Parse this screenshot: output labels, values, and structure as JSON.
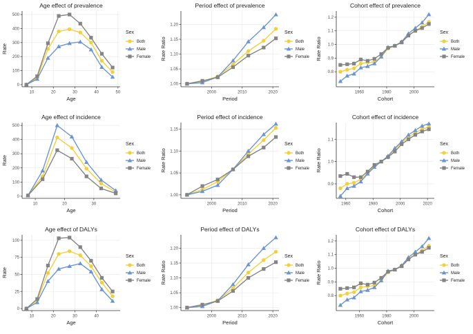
{
  "colors": {
    "both": "#F2D03B",
    "male": "#6B95D1",
    "female": "#848484",
    "grid": "#E6E6E6",
    "axis": "#333333",
    "tick": "#4d4d4d"
  },
  "legend": {
    "title": "Sex",
    "labels": [
      "Both",
      "Male",
      "Female"
    ]
  },
  "chart_data": [
    {
      "type": "line",
      "title": "Age effect of prevalence",
      "xlabel": "Age",
      "ylabel": "Rate",
      "xlim": [
        5.5,
        51
      ],
      "ylim": [
        -15,
        525
      ],
      "xticks": [
        10,
        20,
        30,
        40,
        50
      ],
      "yticks": [
        0,
        100,
        200,
        300,
        400,
        500
      ],
      "x": [
        7.5,
        12.5,
        17.5,
        22.5,
        27.5,
        32.5,
        37.5,
        42.5,
        47.5
      ],
      "series": [
        {
          "name": "Both",
          "values": [
            0,
            50,
            255,
            380,
            395,
            372,
            300,
            170,
            90
          ]
        },
        {
          "name": "Male",
          "values": [
            0,
            40,
            190,
            272,
            295,
            305,
            250,
            125,
            55
          ]
        },
        {
          "name": "Female",
          "values": [
            0,
            60,
            295,
            490,
            500,
            435,
            335,
            220,
            122
          ]
        }
      ]
    },
    {
      "type": "line",
      "title": "Period effect of prevalence",
      "xlabel": "Period",
      "ylabel": "Rate Ratio",
      "xlim": [
        1990,
        2022
      ],
      "ylim": [
        0.99,
        1.245
      ],
      "xticks": [
        2000,
        2010,
        2020
      ],
      "yticks": [
        1.0,
        1.05,
        1.1,
        1.15,
        1.2
      ],
      "yformat": 2,
      "x": [
        1992,
        1997,
        2002,
        2007,
        2012,
        2017,
        2021
      ],
      "series": [
        {
          "name": "Both",
          "values": [
            1.0,
            1.008,
            1.025,
            1.065,
            1.11,
            1.145,
            1.185
          ]
        },
        {
          "name": "Male",
          "values": [
            1.0,
            1.004,
            1.023,
            1.078,
            1.142,
            1.19,
            1.233
          ]
        },
        {
          "name": "Female",
          "values": [
            1.0,
            1.01,
            1.022,
            1.056,
            1.095,
            1.122,
            1.153
          ]
        }
      ]
    },
    {
      "type": "line",
      "title": "Cohort effect of prevalence",
      "xlabel": "Cohort",
      "ylabel": "Rate Ratio",
      "xlim": [
        1943,
        2015
      ],
      "ylim": [
        0.69,
        1.245
      ],
      "xticks": [
        1960,
        1980,
        2000
      ],
      "yticks": [
        0.8,
        0.9,
        1.0,
        1.1,
        1.2
      ],
      "yformat": 1,
      "x": [
        1946,
        1951,
        1956,
        1961,
        1966,
        1971,
        1976,
        1981,
        1986,
        1991,
        1996,
        2001,
        2006,
        2011
      ],
      "series": [
        {
          "name": "Both",
          "values": [
            0.8,
            0.815,
            0.825,
            0.86,
            0.868,
            0.872,
            0.91,
            0.97,
            0.99,
            1.02,
            1.07,
            1.1,
            1.13,
            1.165
          ]
        },
        {
          "name": "Male",
          "values": [
            0.73,
            0.77,
            0.785,
            0.83,
            0.84,
            0.86,
            0.91,
            0.98,
            0.99,
            1.02,
            1.08,
            1.12,
            1.16,
            1.22
          ]
        },
        {
          "name": "Female",
          "values": [
            0.85,
            0.855,
            0.86,
            0.89,
            0.88,
            0.895,
            0.93,
            0.975,
            0.99,
            1.015,
            1.065,
            1.1,
            1.12,
            1.15
          ]
        }
      ]
    },
    {
      "type": "line",
      "title": "Age effect of incidence",
      "xlabel": "Age",
      "ylabel": "Rate",
      "xlim": [
        5.5,
        39
      ],
      "ylim": [
        -15,
        520
      ],
      "xticks": [
        10,
        20,
        30
      ],
      "yticks": [
        0,
        100,
        200,
        300,
        400,
        500
      ],
      "x": [
        7.5,
        12.5,
        17.5,
        22.5,
        27.5,
        32.5,
        37.5
      ],
      "series": [
        {
          "name": "Both",
          "values": [
            5,
            140,
            415,
            340,
            195,
            90,
            30
          ]
        },
        {
          "name": "Male",
          "values": [
            5,
            180,
            500,
            420,
            240,
            115,
            40
          ]
        },
        {
          "name": "Female",
          "values": [
            5,
            120,
            325,
            265,
            140,
            55,
            20
          ]
        }
      ]
    },
    {
      "type": "line",
      "title": "Period effect of incidence",
      "xlabel": "Period",
      "ylabel": "Rate Ratio",
      "xlim": [
        1990,
        2022
      ],
      "ylim": [
        0.992,
        1.165
      ],
      "xticks": [
        2000,
        2010,
        2020
      ],
      "yticks": [
        1.0,
        1.05,
        1.1,
        1.15
      ],
      "yformat": 2,
      "x": [
        1992,
        1997,
        2002,
        2007,
        2012,
        2017,
        2021
      ],
      "series": [
        {
          "name": "Both",
          "values": [
            1.0,
            1.012,
            1.03,
            1.058,
            1.093,
            1.125,
            1.153
          ]
        },
        {
          "name": "Male",
          "values": [
            1.0,
            1.008,
            1.022,
            1.058,
            1.1,
            1.138,
            1.162
          ]
        },
        {
          "name": "Female",
          "values": [
            1.0,
            1.02,
            1.035,
            1.058,
            1.088,
            1.108,
            1.132
          ]
        }
      ]
    },
    {
      "type": "line",
      "title": "Cohort effect of incidence",
      "xlabel": "Cohort",
      "ylabel": "Rate Ratio",
      "xlim": [
        1953,
        2025
      ],
      "ylim": [
        0.835,
        1.175
      ],
      "xticks": [
        1960,
        1980,
        2000,
        2020
      ],
      "yticks": [
        0.9,
        1.0,
        1.1
      ],
      "yformat": 1,
      "x": [
        1956,
        1961,
        1966,
        1971,
        1976,
        1981,
        1986,
        1991,
        1996,
        2001,
        2006,
        2011,
        2016,
        2021
      ],
      "series": [
        {
          "name": "Both",
          "values": [
            0.88,
            0.9,
            0.905,
            0.92,
            0.948,
            0.98,
            1.0,
            1.02,
            1.055,
            1.085,
            1.11,
            1.13,
            1.145,
            1.155
          ]
        },
        {
          "name": "Male",
          "values": [
            0.845,
            0.88,
            0.89,
            0.91,
            0.945,
            0.975,
            1.0,
            1.025,
            1.06,
            1.09,
            1.12,
            1.14,
            1.16,
            1.17
          ]
        },
        {
          "name": "Female",
          "values": [
            0.935,
            0.945,
            0.93,
            0.93,
            0.955,
            0.985,
            1.0,
            1.02,
            1.045,
            1.078,
            1.1,
            1.12,
            1.135,
            1.145
          ]
        }
      ]
    },
    {
      "type": "line",
      "title": "Age effect of DALYs",
      "xlabel": "Age",
      "ylabel": "Rate",
      "xlim": [
        5.5,
        51
      ],
      "ylim": [
        -3,
        108
      ],
      "xticks": [
        10,
        20,
        30,
        40
      ],
      "yticks": [
        0,
        25,
        50,
        75,
        100
      ],
      "x": [
        7.5,
        12.5,
        17.5,
        22.5,
        27.5,
        32.5,
        37.5,
        42.5,
        47.5
      ],
      "series": [
        {
          "name": "Both",
          "values": [
            0,
            12,
            52,
            80,
            84,
            78,
            62,
            38,
            18
          ]
        },
        {
          "name": "Male",
          "values": [
            0,
            9,
            40,
            58,
            62,
            66,
            54,
            28,
            11
          ]
        },
        {
          "name": "Female",
          "values": [
            0,
            14,
            63,
            103,
            104,
            90,
            70,
            45,
            25
          ]
        }
      ]
    },
    {
      "type": "line",
      "title": "Period effect of DALYs",
      "xlabel": "Period",
      "ylabel": "Rate Ratio",
      "xlim": [
        1990,
        2022
      ],
      "ylim": [
        0.99,
        1.245
      ],
      "xticks": [
        2000,
        2010,
        2020
      ],
      "yticks": [
        1.0,
        1.05,
        1.1,
        1.15,
        1.2
      ],
      "yformat": 2,
      "x": [
        1992,
        1997,
        2002,
        2007,
        2012,
        2017,
        2021
      ],
      "series": [
        {
          "name": "Both",
          "values": [
            1.0,
            1.008,
            1.025,
            1.065,
            1.118,
            1.16,
            1.188
          ]
        },
        {
          "name": "Male",
          "values": [
            1.0,
            1.004,
            1.023,
            1.078,
            1.145,
            1.2,
            1.236
          ]
        },
        {
          "name": "Female",
          "values": [
            1.0,
            1.01,
            1.022,
            1.056,
            1.1,
            1.13,
            1.153
          ]
        }
      ]
    },
    {
      "type": "line",
      "title": "Cohort effect of DALYs",
      "xlabel": "Cohort",
      "ylabel": "Rate Ratio",
      "xlim": [
        1943,
        2015
      ],
      "ylim": [
        0.69,
        1.245
      ],
      "xticks": [
        1960,
        1980,
        2000
      ],
      "yticks": [
        0.8,
        0.9,
        1.0,
        1.1,
        1.2
      ],
      "yformat": 1,
      "x": [
        1946,
        1951,
        1956,
        1961,
        1966,
        1971,
        1976,
        1981,
        1986,
        1991,
        1996,
        2001,
        2006,
        2011
      ],
      "series": [
        {
          "name": "Both",
          "values": [
            0.8,
            0.815,
            0.825,
            0.86,
            0.868,
            0.872,
            0.91,
            0.97,
            0.99,
            1.02,
            1.07,
            1.1,
            1.13,
            1.165
          ]
        },
        {
          "name": "Male",
          "values": [
            0.73,
            0.77,
            0.785,
            0.83,
            0.84,
            0.86,
            0.91,
            0.98,
            0.99,
            1.02,
            1.08,
            1.12,
            1.16,
            1.22
          ]
        },
        {
          "name": "Female",
          "values": [
            0.85,
            0.855,
            0.86,
            0.89,
            0.88,
            0.895,
            0.93,
            0.975,
            0.99,
            1.015,
            1.065,
            1.1,
            1.12,
            1.15
          ]
        }
      ]
    }
  ]
}
